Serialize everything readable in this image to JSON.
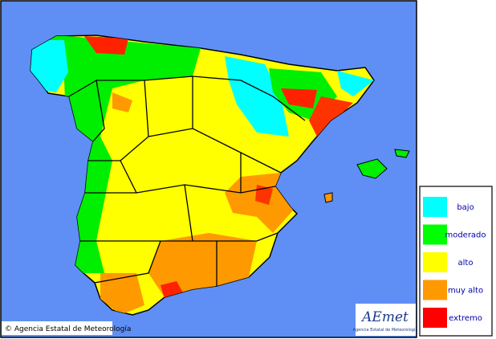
{
  "legend": {
    "items": [
      {
        "label": "bajo",
        "color": "#00ffff"
      },
      {
        "label": "moderado",
        "color": "#00ff00"
      },
      {
        "label": "alto",
        "color": "#ffff00"
      },
      {
        "label": "muy alto",
        "color": "#ff9900"
      },
      {
        "label": "extremo",
        "color": "#ff0000"
      }
    ]
  },
  "copyright": "© Agencia Estatal de Meteorología",
  "logo": {
    "name": "AEmet",
    "subtitle": "Agencia Estatal de Meteorología"
  }
}
